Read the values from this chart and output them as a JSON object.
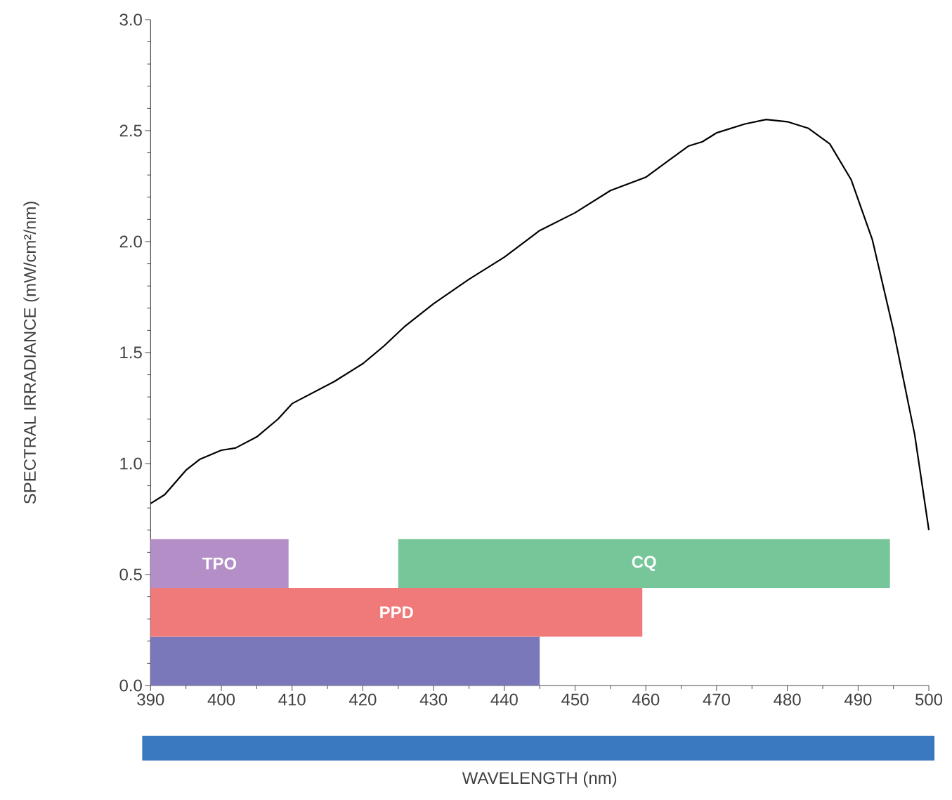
{
  "chart_data": {
    "type": "line",
    "xlabel": "WAVELENGTH (nm)",
    "ylabel": "SPECTRAL IRRADIANCE  (mW/cm²/nm)",
    "x": [
      390,
      392,
      395,
      397,
      400,
      402,
      405,
      408,
      410,
      413,
      416,
      420,
      423,
      426,
      430,
      435,
      440,
      445,
      450,
      455,
      460,
      463,
      466,
      468,
      470,
      474,
      477,
      480,
      483,
      486,
      489,
      492,
      495,
      498,
      500
    ],
    "series": [
      {
        "color": "#000000",
        "values": [
          0.82,
          0.86,
          0.97,
          1.02,
          1.06,
          1.07,
          1.12,
          1.2,
          1.27,
          1.32,
          1.37,
          1.45,
          1.53,
          1.62,
          1.72,
          1.83,
          1.93,
          2.05,
          2.13,
          2.23,
          2.29,
          2.36,
          2.43,
          2.45,
          2.49,
          2.53,
          2.55,
          2.54,
          2.51,
          2.44,
          2.28,
          2.01,
          1.6,
          1.13,
          0.7
        ]
      }
    ],
    "xlim": [
      390,
      500
    ],
    "ylim": [
      0,
      3
    ],
    "xticks": [
      390,
      400,
      410,
      420,
      430,
      440,
      450,
      460,
      470,
      480,
      490,
      500
    ],
    "yticks": [
      {
        "value": 0,
        "label": "0.0"
      },
      {
        "value": 0.5,
        "label": "0.5"
      },
      {
        "value": 1,
        "label": "1.0"
      },
      {
        "value": 1.5,
        "label": "1.5"
      },
      {
        "value": 2,
        "label": "2.0"
      },
      {
        "value": 2.5,
        "label": "2.5"
      },
      {
        "value": 3,
        "label": "3.0"
      }
    ],
    "bands": [
      {
        "axis": "x",
        "from": 390,
        "to": 445,
        "color": "#7a78ba"
      },
      {
        "axis": "x",
        "from": 390,
        "to": 459.5,
        "label": "PPD",
        "color": "#f07a7a"
      },
      {
        "axis": "x",
        "from": 390,
        "to": 409.5,
        "label": "TPO",
        "color": "#b48ec6"
      },
      {
        "axis": "x",
        "from": 425,
        "to": 494.5,
        "label": "CQ",
        "color": "#77c69a"
      }
    ],
    "grid": false,
    "marker": "none",
    "line_style": "solid"
  }
}
